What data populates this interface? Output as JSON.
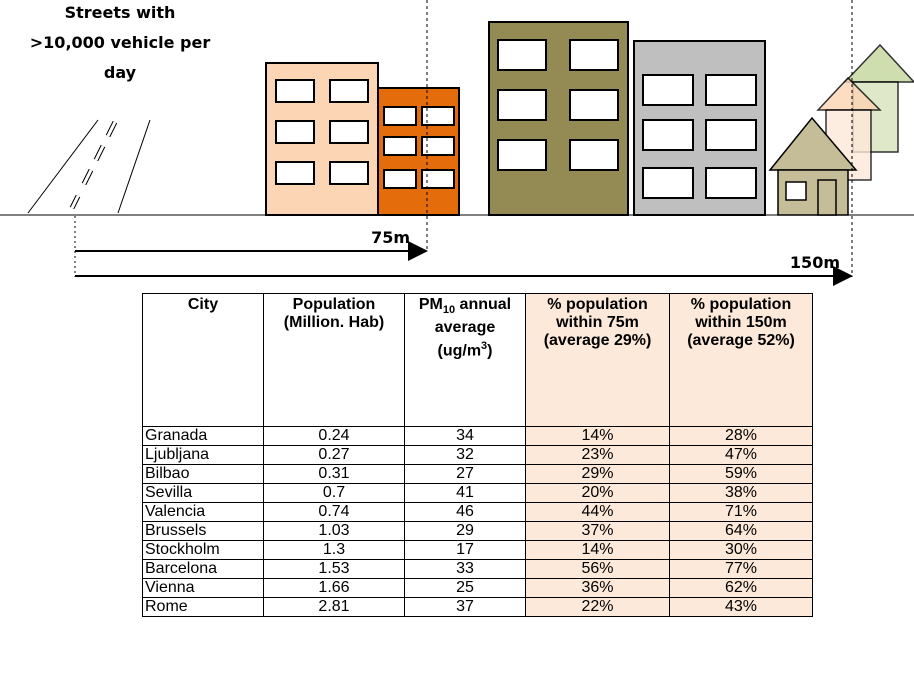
{
  "illustration": {
    "street_label": [
      "Streets with",
      ">10,000 vehicle per",
      "day"
    ],
    "distance_near": "75m",
    "distance_far": "150m"
  },
  "table": {
    "header": [
      [
        "City"
      ],
      [
        "Population (Million. Hab)"
      ],
      [
        "PM",
        "10",
        " annual average (ug/m",
        "3",
        ")"
      ],
      [
        "% population within 75m (average 29%)"
      ],
      [
        "% population within 150m (average 52%)"
      ]
    ],
    "rows": [
      [
        "Granada",
        "0.24",
        "34",
        "14%",
        "28%"
      ],
      [
        "Ljubljana",
        "0.27",
        "32",
        "23%",
        "47%"
      ],
      [
        "Bilbao",
        "0.31",
        "27",
        "29%",
        "59%"
      ],
      [
        "Sevilla",
        "0.7",
        "41",
        "20%",
        "38%"
      ],
      [
        "Valencia",
        "0.74",
        "46",
        "44%",
        "71%"
      ],
      [
        "Brussels",
        "1.03",
        "29",
        "37%",
        "64%"
      ],
      [
        "Stockholm",
        "1.3",
        "17",
        "14%",
        "30%"
      ],
      [
        "Barcelona",
        "1.53",
        "33",
        "56%",
        "77%"
      ],
      [
        "Vienna",
        "1.66",
        "25",
        "36%",
        "62%"
      ],
      [
        "Rome",
        "2.81",
        "37",
        "22%",
        "43%"
      ]
    ]
  }
}
